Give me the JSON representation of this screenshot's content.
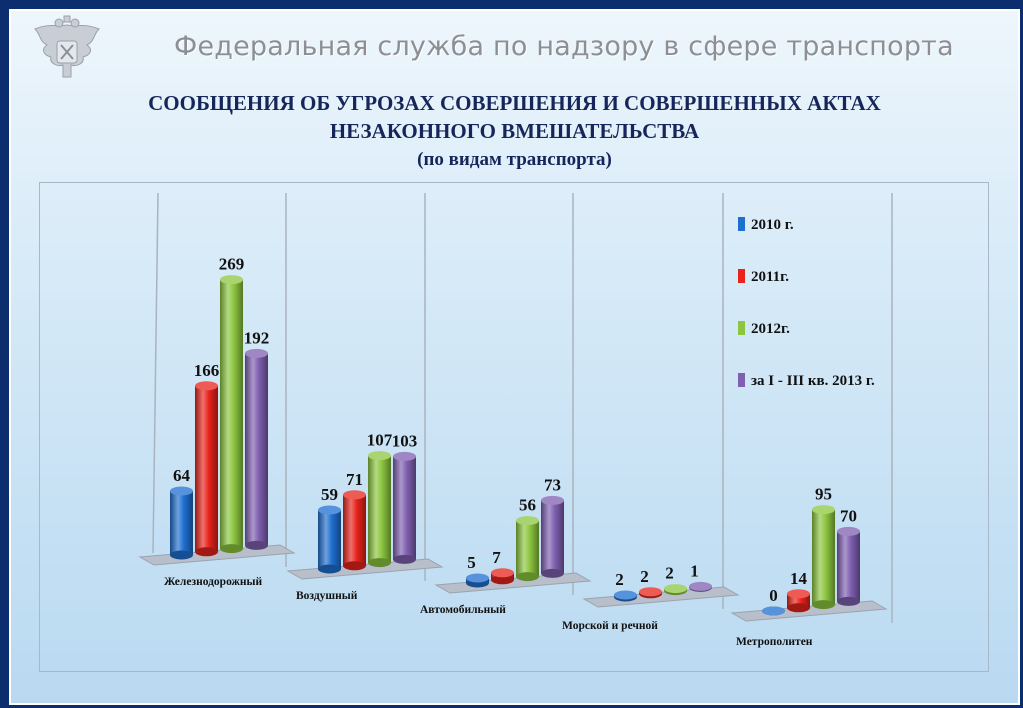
{
  "header": {
    "organization": "Федеральная служба по надзору в сфере транспорта",
    "emblem_icon": "double-headed-eagle-emblem-icon"
  },
  "titles": {
    "line1": "СООБЩЕНИЯ ОБ УГРОЗАХ СОВЕРШЕНИЯ И СОВЕРШЕННЫХ АКТАХ",
    "line2": "НЕЗАКОННОГО ВМЕШАТЕЛЬСТВА",
    "line3": "(по видам транспорта)"
  },
  "chart_data": {
    "type": "bar",
    "style": "3d-cylinder",
    "title": "",
    "xlabel": "",
    "ylabel": "",
    "categories": [
      "Железнодорожный",
      "Воздушный",
      "Автомобильный",
      "Морской и речной",
      "Метрополитен"
    ],
    "series": [
      {
        "name": "2010 г.",
        "color": "#1f6fd0",
        "values": [
          64,
          59,
          5,
          2,
          0
        ]
      },
      {
        "name": "2011г.",
        "color": "#e8231b",
        "values": [
          166,
          71,
          7,
          2,
          14
        ]
      },
      {
        "name": "2012г.",
        "color": "#8cc63f",
        "values": [
          269,
          107,
          56,
          2,
          95
        ]
      },
      {
        "name": "за I - III кв. 2013 г.",
        "color": "#7f5fb0",
        "values": [
          192,
          103,
          73,
          1,
          70
        ]
      }
    ],
    "ylim": [
      0,
      300
    ],
    "data_labels": true,
    "grid": false,
    "legend_position": "top-right"
  }
}
